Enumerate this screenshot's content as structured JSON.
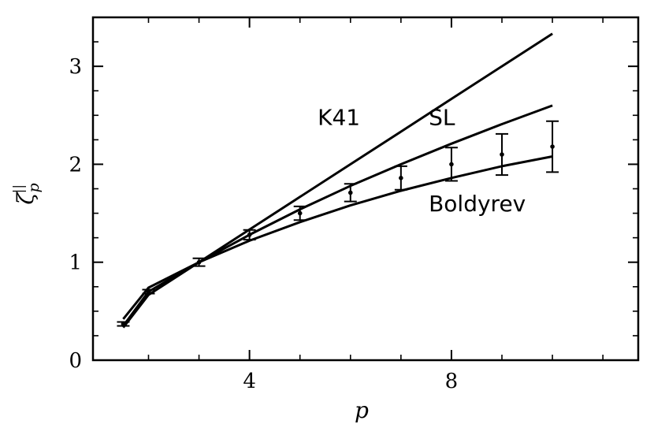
{
  "chart_data": {
    "type": "line",
    "xlabel": "p",
    "ylabel": "ζ",
    "ylabel_sub": "p",
    "ylabel_sup": "||",
    "xlim": [
      0.9,
      11.7
    ],
    "ylim": [
      0,
      3.5
    ],
    "xticks": [
      4,
      8
    ],
    "xtick_labels": [
      "4",
      "8"
    ],
    "yticks": [
      0,
      1,
      2,
      3
    ],
    "ytick_labels": [
      "0",
      "1",
      "2",
      "3"
    ],
    "x_minor_ticks": [
      2,
      3,
      5,
      6,
      7,
      9,
      10,
      11
    ],
    "y_minor_ticks": [
      0.25,
      0.5,
      0.75,
      1.25,
      1.5,
      1.75,
      2.25,
      2.5,
      2.75,
      3.25
    ],
    "grid": false,
    "series": [
      {
        "name": "K41",
        "x": [
          1.5,
          2,
          3,
          4,
          5,
          6,
          7,
          8,
          9,
          10
        ],
        "values": [
          0.333,
          0.667,
          1.0,
          1.333,
          1.667,
          2.0,
          2.333,
          2.667,
          3.0,
          3.333
        ],
        "label_at": [
          5.35,
          2.4
        ]
      },
      {
        "name": "SL",
        "x": [
          1.5,
          2,
          3,
          4,
          5,
          6,
          7,
          8,
          9,
          10
        ],
        "values": [
          0.35,
          0.7,
          1.0,
          1.28,
          1.54,
          1.78,
          2.0,
          2.21,
          2.41,
          2.6
        ],
        "label_at": [
          7.55,
          2.4
        ]
      },
      {
        "name": "Boldyrev",
        "x": [
          1.5,
          2,
          3,
          4,
          5,
          6,
          7,
          8,
          9,
          10
        ],
        "values": [
          0.42,
          0.74,
          1.0,
          1.22,
          1.41,
          1.58,
          1.73,
          1.86,
          1.98,
          2.08
        ],
        "label_at": [
          7.55,
          1.52
        ]
      }
    ],
    "measurements": {
      "x": [
        1.5,
        2,
        3,
        4,
        5,
        6,
        7,
        8,
        9,
        10
      ],
      "y": [
        0.37,
        0.7,
        1.0,
        1.28,
        1.5,
        1.71,
        1.86,
        2.0,
        2.1,
        2.18
      ],
      "err": [
        0.02,
        0.02,
        0.04,
        0.05,
        0.07,
        0.09,
        0.12,
        0.17,
        0.21,
        0.26
      ]
    }
  }
}
